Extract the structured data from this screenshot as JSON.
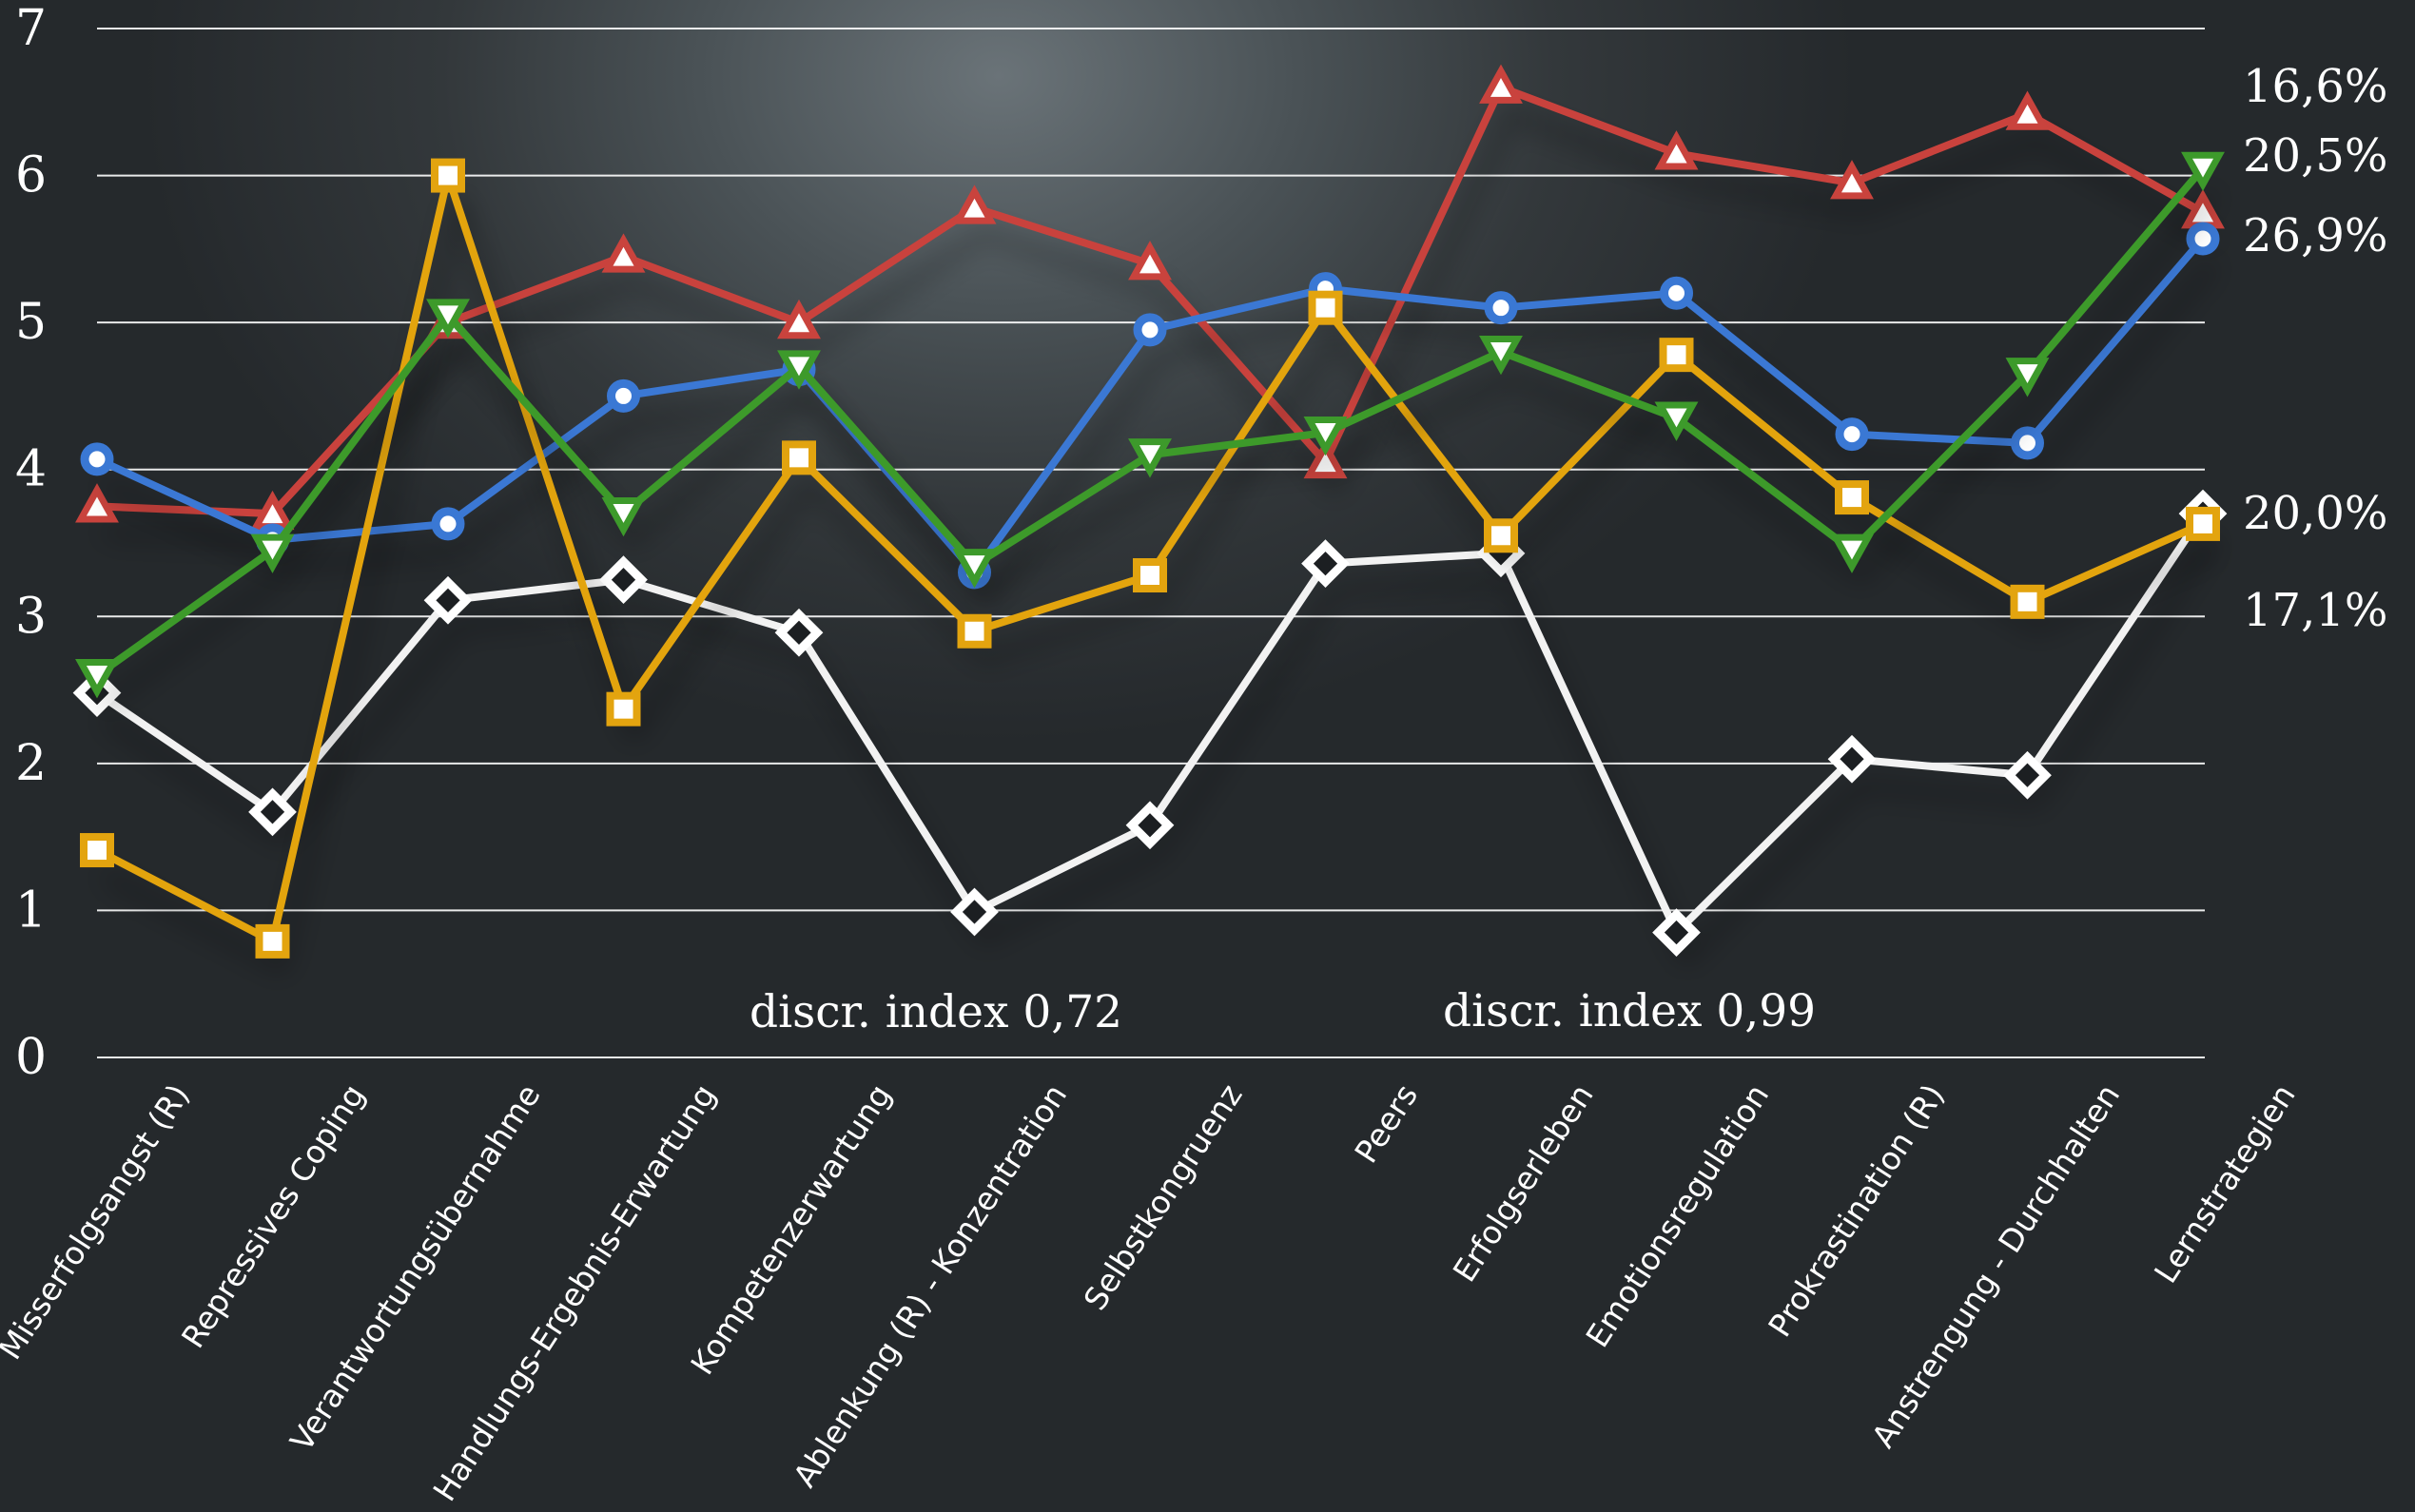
{
  "chart_data": {
    "type": "line",
    "categories": [
      "Misserfolgsangst (R)",
      "Repressives Coping",
      "Verantwortungsübernahme",
      "Handlungs-Ergebnis-Erwartung",
      "Kompetenzerwartung",
      "Ablenkung (R) - Konzentration",
      "Selbstkongruenz",
      "Peers",
      "Erfolgserleben",
      "Emotionsregulation",
      "Prokrastination (R)",
      "Anstrengung - Durchhalten",
      "Lernstrategien"
    ],
    "ylim": [
      0,
      7
    ],
    "yticks": [
      "0",
      "1",
      "2",
      "3",
      "4",
      "5",
      "6",
      "7"
    ],
    "grid": true,
    "series": [
      {
        "color": "#c9433d",
        "marker": "triangle-up",
        "end_label": "16,6%",
        "values": [
          3.75,
          3.7,
          5.0,
          5.45,
          5.0,
          5.78,
          5.4,
          4.05,
          6.6,
          6.15,
          5.95,
          6.42,
          5.75
        ]
      },
      {
        "color": "#3d9a2b",
        "marker": "triangle-down",
        "end_label": "20,5%",
        "values": [
          2.6,
          3.45,
          5.05,
          3.7,
          4.7,
          3.35,
          4.1,
          4.25,
          4.8,
          4.35,
          3.45,
          4.65,
          6.05
        ]
      },
      {
        "color": "#3a78d4",
        "marker": "circle",
        "end_label": "26,9%",
        "values": [
          4.07,
          3.52,
          3.63,
          4.5,
          4.68,
          3.3,
          4.95,
          5.23,
          5.1,
          5.2,
          4.24,
          4.18,
          5.57
        ]
      },
      {
        "color": "#f2f2f2",
        "marker": "diamond",
        "end_label": "20,0%",
        "values": [
          2.48,
          1.67,
          3.11,
          3.25,
          2.89,
          0.99,
          1.58,
          3.36,
          3.43,
          0.85,
          2.03,
          1.92,
          3.7
        ]
      },
      {
        "color": "#e3a40f",
        "marker": "square",
        "end_label": "17,1%",
        "values": [
          1.41,
          0.79,
          6.0,
          2.37,
          4.08,
          2.9,
          3.28,
          5.1,
          3.55,
          4.78,
          3.81,
          3.1,
          3.63
        ]
      }
    ],
    "annotations": [
      {
        "text": "discr. index 0,72"
      },
      {
        "text": "discr. index 0,99"
      }
    ]
  }
}
